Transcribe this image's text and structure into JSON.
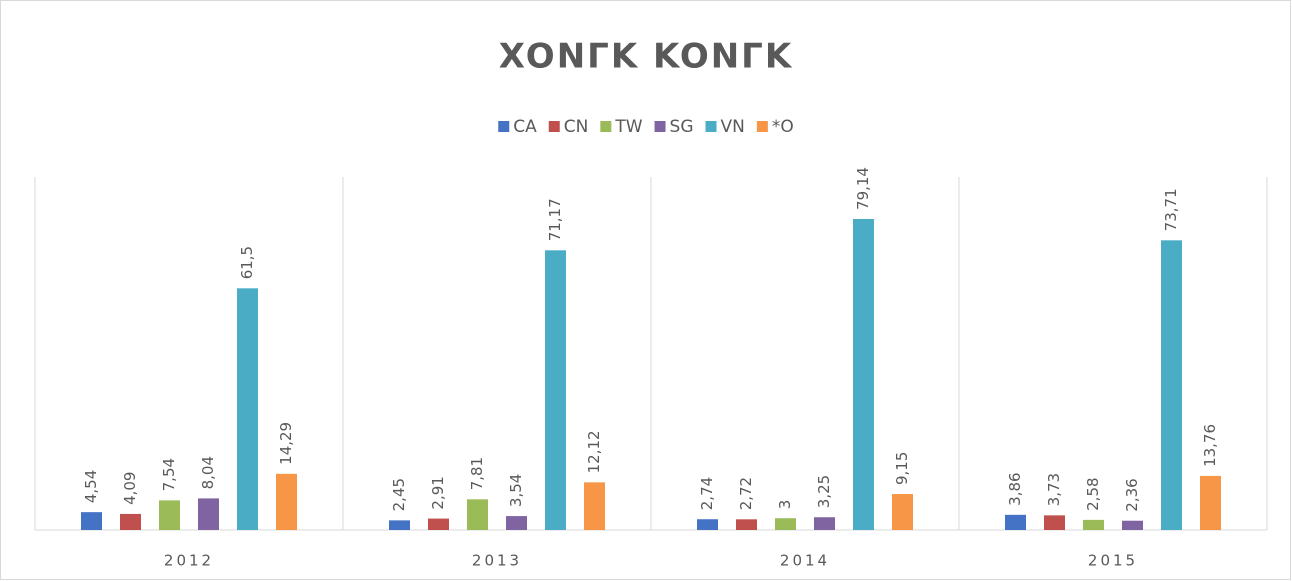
{
  "chart_data": {
    "type": "bar",
    "title": "XONΓK KONΓK",
    "categories": [
      "2012",
      "2013",
      "2014",
      "2015"
    ],
    "series": [
      {
        "name": "CA",
        "color": "#4472c4",
        "values": [
          4.54,
          2.45,
          2.74,
          3.86
        ],
        "value_labels": [
          "4,54",
          "2,45",
          "2,74",
          "3,86"
        ]
      },
      {
        "name": "CN",
        "color": "#c0504d",
        "values": [
          4.09,
          2.91,
          2.72,
          3.73
        ],
        "value_labels": [
          "4,09",
          "2,91",
          "2,72",
          "3,73"
        ]
      },
      {
        "name": "TW",
        "color": "#9bbb59",
        "values": [
          7.54,
          7.81,
          3,
          2.58
        ],
        "value_labels": [
          "7,54",
          "7,81",
          "3",
          "2,58"
        ]
      },
      {
        "name": "SG",
        "color": "#8064a2",
        "values": [
          8.04,
          3.54,
          3.25,
          2.36
        ],
        "value_labels": [
          "8,04",
          "3,54",
          "3,25",
          "2,36"
        ]
      },
      {
        "name": "VN",
        "color": "#4bacc6",
        "values": [
          61.5,
          71.17,
          79.14,
          73.71
        ],
        "value_labels": [
          "61,5",
          "71,17",
          "79,14",
          "73,71"
        ]
      },
      {
        "name": "*O",
        "color": "#f79646",
        "values": [
          14.29,
          12.12,
          9.15,
          13.76
        ],
        "value_labels": [
          "14,29",
          "12,12",
          "9,15",
          "13,76"
        ]
      }
    ],
    "legend": "top"
  }
}
